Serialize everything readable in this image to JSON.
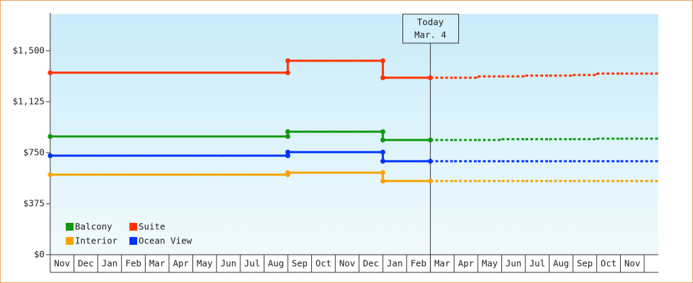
{
  "chart_data": {
    "type": "step-line",
    "categories": [
      "Nov",
      "Dec",
      "Jan",
      "Feb",
      "Mar",
      "Apr",
      "May",
      "Jun",
      "Jul",
      "Aug",
      "Sep",
      "Oct",
      "Nov",
      "Dec",
      "Jan",
      "Feb",
      "Mar",
      "Apr",
      "May",
      "Jun",
      "Jul",
      "Aug",
      "Sep",
      "Oct",
      "Nov"
    ],
    "series": [
      {
        "name": "Balcony",
        "color": "#119911",
        "values": [
          870,
          870,
          870,
          870,
          870,
          870,
          870,
          870,
          870,
          870,
          905,
          905,
          905,
          905,
          844,
          844,
          844,
          844,
          844,
          850,
          850,
          850,
          850,
          854,
          854
        ]
      },
      {
        "name": "Suite",
        "color": "#ff3300",
        "values": [
          1339,
          1339,
          1339,
          1339,
          1339,
          1339,
          1339,
          1339,
          1339,
          1339,
          1427,
          1427,
          1427,
          1427,
          1302,
          1302,
          1302,
          1302,
          1312,
          1312,
          1318,
          1318,
          1322,
          1333,
          1333
        ]
      },
      {
        "name": "Interior",
        "color": "#f5a300",
        "values": [
          589,
          589,
          589,
          589,
          589,
          589,
          589,
          589,
          589,
          589,
          604,
          604,
          604,
          604,
          542,
          542,
          542,
          542,
          542,
          542,
          542,
          542,
          542,
          542,
          542
        ]
      },
      {
        "name": "Ocean View",
        "color": "#0033ff",
        "values": [
          729,
          729,
          729,
          729,
          729,
          729,
          729,
          729,
          729,
          729,
          755,
          755,
          755,
          755,
          688,
          688,
          688,
          688,
          688,
          688,
          688,
          688,
          688,
          688,
          688
        ]
      }
    ],
    "ylim": [
      0,
      1770
    ],
    "yticks": [
      {
        "value": 0,
        "label": "$0"
      },
      {
        "value": 375,
        "label": "$375"
      },
      {
        "value": 750,
        "label": "$750"
      },
      {
        "value": 1125,
        "label": "$1,125"
      },
      {
        "value": 1500,
        "label": "$1,500"
      }
    ],
    "today": {
      "label": "Today",
      "date": "Mar. 4",
      "category": 16
    },
    "legend": "lower left"
  }
}
